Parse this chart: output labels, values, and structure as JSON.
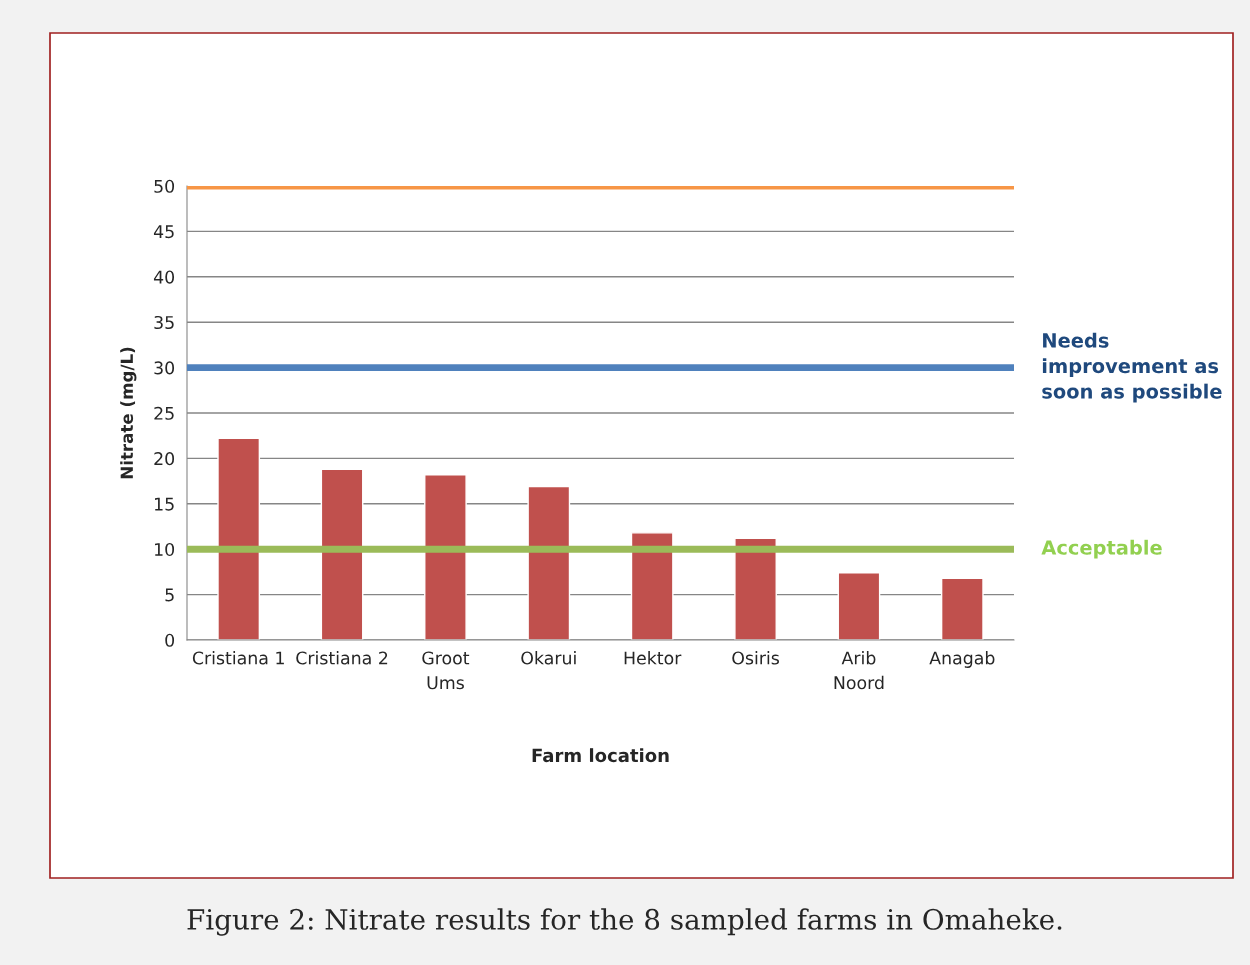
{
  "chart_data": {
    "type": "bar",
    "categories": [
      "Cristiana 1",
      "Cristiana 2",
      "Groot\nUms",
      "Okarui",
      "Hektor",
      "Osiris",
      "Arib\nNoord",
      "Anagab"
    ],
    "values": [
      22.2,
      18.8,
      18.2,
      16.9,
      11.8,
      11.2,
      7.4,
      6.8
    ],
    "color": "#c0504d",
    "xlabel": "Farm location",
    "ylabel": "Nitrate (mg/L)",
    "ylim": [
      0,
      50
    ],
    "yticks": [
      0,
      5,
      10,
      15,
      20,
      25,
      30,
      35,
      40,
      45,
      50
    ],
    "grid": "y",
    "ref_lines": [
      {
        "axis": "y",
        "value": 50,
        "label": null,
        "color": "#f79646"
      },
      {
        "axis": "y",
        "value": 30,
        "label": "Needs\nimprovement as\nsoon as possible",
        "color": "#4f81bd"
      },
      {
        "axis": "y",
        "value": 10,
        "label": "Acceptable",
        "color": "#9bbb59"
      }
    ],
    "annotations": [
      "Figure 2: Nitrate results for the 8 sampled farms in Omaheke."
    ]
  }
}
